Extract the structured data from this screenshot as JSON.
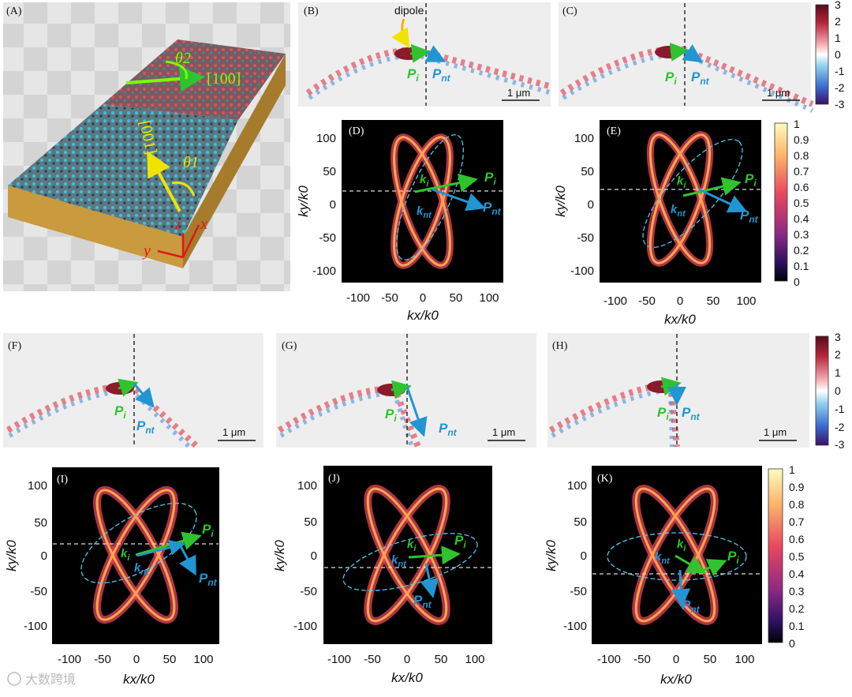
{
  "figure": {
    "panel_labels": [
      "(A)",
      "(B)",
      "(C)",
      "(D)",
      "(E)",
      "(F)",
      "(G)",
      "(H)",
      "(I)",
      "(J)",
      "(K)"
    ],
    "crystal_axes": {
      "top": "[100]",
      "bottom": "[001]",
      "theta2": "θ2",
      "theta1": "θ1",
      "x": "x",
      "y": "y",
      "z": "z"
    },
    "dipole_label": "dipole",
    "scale_bar": "1 μm",
    "field_colorbar_ticks": [
      "3",
      "2",
      "1",
      "0",
      "-1",
      "-2",
      "-3"
    ],
    "intensity_colorbar_ticks": [
      "1",
      "0.9",
      "0.8",
      "0.7",
      "0.6",
      "0.5",
      "0.4",
      "0.3",
      "0.2",
      "0.1",
      "0"
    ],
    "axis_ticks_x": [
      "-100",
      "-50",
      "0",
      "50",
      "100"
    ],
    "axis_ticks_y": [
      "100",
      "50",
      "0",
      "-50",
      "-100"
    ],
    "xlabel": "kx/k0",
    "ylabel": "ky/k0",
    "vectors": {
      "Pi": "P",
      "Pi_sub": "i",
      "Pnt": "P",
      "Pnt_sub": "nt",
      "ki": "k",
      "ki_sub": "i",
      "knt": "k",
      "knt_sub": "nt"
    },
    "watermark": "大数跨境",
    "colors": {
      "green": "#2fc42f",
      "blue": "#2196d3",
      "cyan_contour": "#53c7ee",
      "red_axis": "#e0161b"
    }
  }
}
